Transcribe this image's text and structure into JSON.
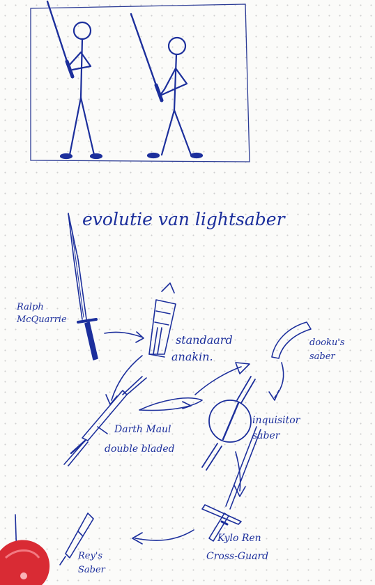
{
  "page_title": "evolutie van lightsaber",
  "labels": {
    "ralph": "Ralph McQuarrie",
    "standard": "standaard",
    "anakin": "anakin.",
    "dooku": "dooku's saber",
    "maul": "Darth Maul",
    "maul_sub": "double bladed",
    "inquisitor": "inquisitor saber",
    "kylo": "Kylo Ren",
    "kylo_sub": "Cross-Guard",
    "rey": "Rey's Saber"
  },
  "colors": {
    "ink": "#1c2f9c",
    "paper": "#fbfbf9",
    "grid_dot": "#cfcfcf",
    "cap_red": "#d92b34"
  }
}
